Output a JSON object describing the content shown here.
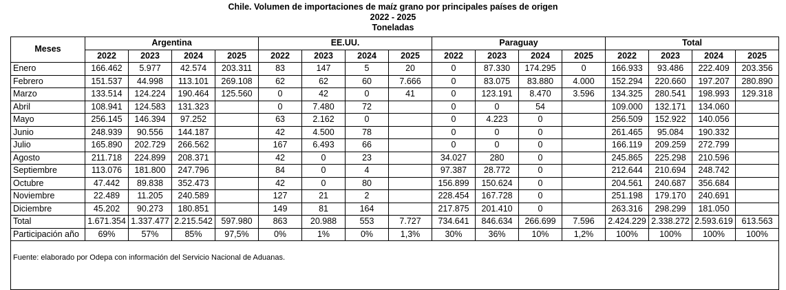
{
  "title": {
    "line1": "Chile. Volumen de importaciones de maíz grano por principales países de origen",
    "line2": "2022 - 2025",
    "line3": "Toneladas"
  },
  "header": {
    "row_label": "Meses",
    "groups": [
      "Argentina",
      "EE.UU.",
      "Paraguay",
      "Total"
    ],
    "years": [
      "2022",
      "2023",
      "2024",
      "2025"
    ]
  },
  "rows": [
    {
      "label": "Enero",
      "values": [
        "166.462",
        "5.977",
        "42.574",
        "203.311",
        "83",
        "147",
        "5",
        "20",
        "0",
        "87.330",
        "174.295",
        "0",
        "166.933",
        "93.486",
        "222.409",
        "203.356"
      ]
    },
    {
      "label": "Febrero",
      "values": [
        "151.537",
        "44.998",
        "113.101",
        "269.108",
        "62",
        "62",
        "60",
        "7.666",
        "0",
        "83.075",
        "83.880",
        "4.000",
        "152.294",
        "220.660",
        "197.207",
        "280.890"
      ]
    },
    {
      "label": "Marzo",
      "values": [
        "133.514",
        "124.224",
        "190.464",
        "125.560",
        "0",
        "42",
        "0",
        "41",
        "0",
        "123.191",
        "8.470",
        "3.596",
        "134.325",
        "280.541",
        "198.993",
        "129.318"
      ]
    },
    {
      "label": "Abril",
      "values": [
        "108.941",
        "124.583",
        "131.323",
        "",
        "0",
        "7.480",
        "72",
        "",
        "0",
        "0",
        "54",
        "",
        "109.000",
        "132.171",
        "134.060",
        ""
      ]
    },
    {
      "label": "Mayo",
      "values": [
        "256.145",
        "146.394",
        "97.252",
        "",
        "63",
        "2.162",
        "0",
        "",
        "0",
        "4.223",
        "0",
        "",
        "256.509",
        "152.922",
        "140.056",
        ""
      ]
    },
    {
      "label": "Junio",
      "values": [
        "248.939",
        "90.556",
        "144.187",
        "",
        "42",
        "4.500",
        "78",
        "",
        "0",
        "0",
        "0",
        "",
        "261.465",
        "95.084",
        "190.332",
        ""
      ]
    },
    {
      "label": "Julio",
      "values": [
        "165.890",
        "202.729",
        "266.562",
        "",
        "167",
        "6.493",
        "66",
        "",
        "0",
        "0",
        "0",
        "",
        "166.119",
        "209.259",
        "272.799",
        ""
      ]
    },
    {
      "label": "Agosto",
      "values": [
        "211.718",
        "224.899",
        "208.371",
        "",
        "42",
        "0",
        "23",
        "",
        "34.027",
        "280",
        "0",
        "",
        "245.865",
        "225.298",
        "210.596",
        ""
      ]
    },
    {
      "label": "Septiembre",
      "values": [
        "113.076",
        "181.800",
        "247.796",
        "",
        "84",
        "0",
        "4",
        "",
        "97.387",
        "28.772",
        "0",
        "",
        "212.644",
        "210.694",
        "248.742",
        ""
      ]
    },
    {
      "label": "Octubre",
      "values": [
        "47.442",
        "89.838",
        "352.473",
        "",
        "42",
        "0",
        "80",
        "",
        "156.899",
        "150.624",
        "0",
        "",
        "204.561",
        "240.687",
        "356.684",
        ""
      ]
    },
    {
      "label": "Noviembre",
      "values": [
        "22.489",
        "11.205",
        "240.589",
        "",
        "127",
        "21",
        "2",
        "",
        "228.454",
        "167.728",
        "0",
        "",
        "251.198",
        "179.170",
        "240.691",
        ""
      ]
    },
    {
      "label": "Diciembre",
      "values": [
        "45.202",
        "90.273",
        "180.851",
        "",
        "149",
        "81",
        "164",
        "",
        "217.875",
        "201.410",
        "0",
        "",
        "263.316",
        "298.299",
        "181.050",
        ""
      ]
    },
    {
      "label": "Total",
      "values": [
        "1.671.354",
        "1.337.477",
        "2.215.542",
        "597.980",
        "863",
        "20.988",
        "553",
        "7.727",
        "734.641",
        "846.634",
        "266.699",
        "7.596",
        "2.424.229",
        "2.338.272",
        "2.593.619",
        "613.563"
      ]
    },
    {
      "label": "Participación año",
      "values": [
        "69%",
        "57%",
        "85%",
        "97,5%",
        "0%",
        "1%",
        "0%",
        "1,3%",
        "30%",
        "36%",
        "10%",
        "1,2%",
        "100%",
        "100%",
        "100%",
        "100%"
      ]
    }
  ],
  "footer": "Fuente: elaborado por Odepa con información del Servicio Nacional de Aduanas."
}
